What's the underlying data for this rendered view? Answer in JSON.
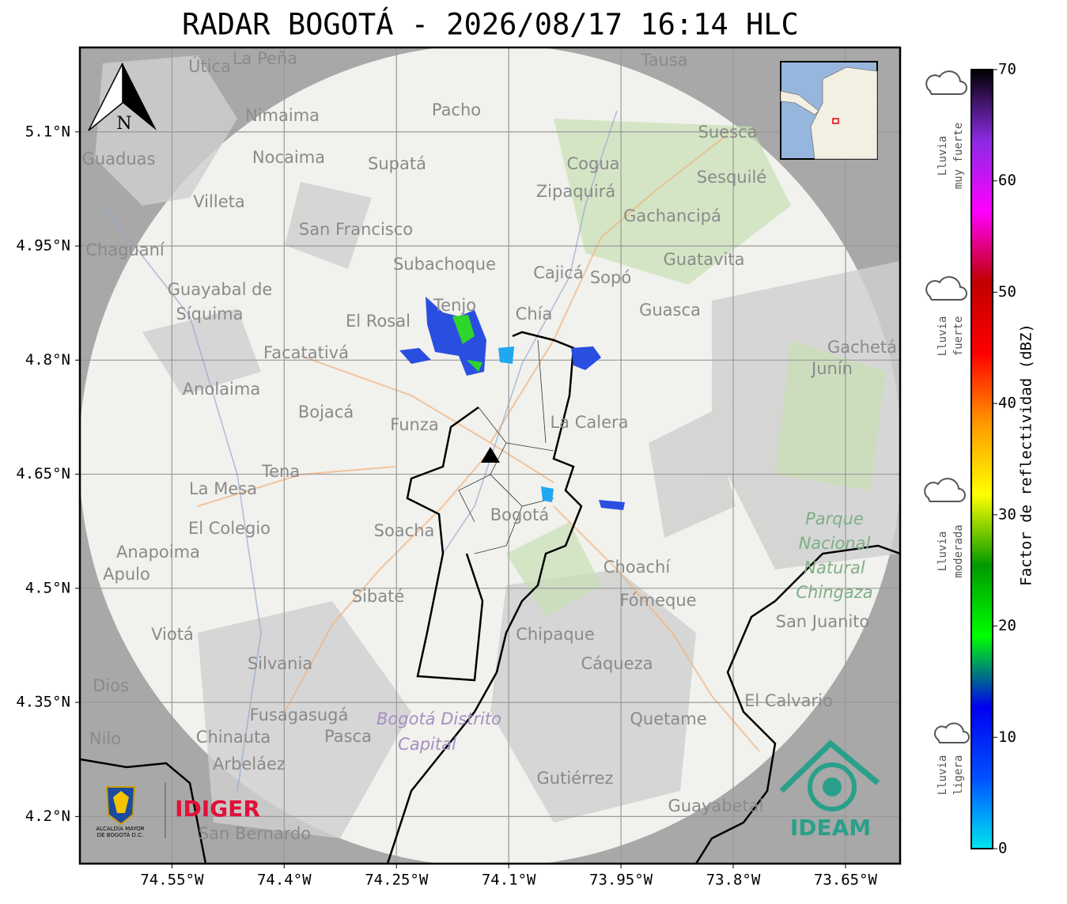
{
  "title": "RADAR BOGOTÁ - 2026/08/17 16:14 HLC",
  "map": {
    "xlim": [
      -74.673,
      -73.577
    ],
    "ylim": [
      4.138,
      5.211
    ],
    "xticks": [
      {
        "value": -74.55,
        "label": "74.55°W"
      },
      {
        "value": -74.4,
        "label": "74.4°W"
      },
      {
        "value": -74.25,
        "label": "74.25°W"
      },
      {
        "value": -74.1,
        "label": "74.1°W"
      },
      {
        "value": -73.95,
        "label": "73.95°W"
      },
      {
        "value": -73.8,
        "label": "73.8°W"
      },
      {
        "value": -73.65,
        "label": "73.65°W"
      }
    ],
    "yticks": [
      {
        "value": 5.1,
        "label": "5.1°N"
      },
      {
        "value": 4.95,
        "label": "4.95°N"
      },
      {
        "value": 4.8,
        "label": "4.8°N"
      },
      {
        "value": 4.65,
        "label": "4.65°N"
      },
      {
        "value": 4.5,
        "label": "4.5°N"
      },
      {
        "value": 4.35,
        "label": "4.35°N"
      },
      {
        "value": 4.2,
        "label": "4.2°N"
      }
    ],
    "grid": true,
    "north": "N",
    "places": [
      "La Peña",
      "Útica",
      "Tausa",
      "Pacho",
      "Nimaima",
      "Guaduas",
      "Nocaima",
      "Supatá",
      "Cogua",
      "Suesca",
      "Sesquilé",
      "Zipaquirá",
      "Villeta",
      "Gachancipá",
      "San Francisco",
      "Chaguaní",
      "Guatavita",
      "Subachoque",
      "Cajicá",
      "Sopó",
      "Guayabal de",
      "Síquima",
      "Tenjo",
      "Chía",
      "El Rosal",
      "Guasca",
      "Facatativá",
      "Gachetá",
      "Junín",
      "Anolaima",
      "Bojacá",
      "Funza",
      "La Calera",
      "Tena",
      "La Mesa",
      "Bogotá",
      "Soacha",
      "El Colegio",
      "Anapoima",
      "Apulo",
      "Choachí",
      "Sibaté",
      "Fómeque",
      "Viotá",
      "Chipaque",
      "San Juanito",
      "Silvania",
      "Cáqueza",
      "Dios",
      "Fusagasugá",
      "Quetame",
      "El Calvario",
      "Nilo",
      "Chinauta",
      "Pasca",
      "Arbeláez",
      "Gutiérrez",
      "Guayabetal",
      "San Bernardo"
    ],
    "park": [
      "Parque",
      "Nacional",
      "Natural",
      "Chingaza"
    ],
    "district": [
      "Bogotá Distrito",
      "Capital"
    ]
  },
  "colorbar": {
    "label": "Factor de reflectividad (dBZ)",
    "lim": [
      0,
      70
    ],
    "ticks": [
      0,
      10,
      20,
      30,
      40,
      50,
      60,
      70
    ],
    "colors": [
      "#00e6f0",
      "#0050ff",
      "#0000f0",
      "#00ff00",
      "#009900",
      "#ffff00",
      "#ff9900",
      "#ff0000",
      "#c00000",
      "#ff00ff",
      "#8a2be2",
      "#000000"
    ]
  },
  "legend": [
    [
      "Lluvia",
      "muy fuerte"
    ],
    [
      "Lluvia",
      "fuerte"
    ],
    [
      "Lluvia",
      "moderada"
    ],
    [
      "Lluvia",
      "ligera"
    ]
  ],
  "logos": {
    "idiger": "IDIGER",
    "alcaldia": [
      "ALCALDÍA MAYOR",
      "DE BOGOTÁ D.C."
    ],
    "ideam": "IDEAM"
  }
}
